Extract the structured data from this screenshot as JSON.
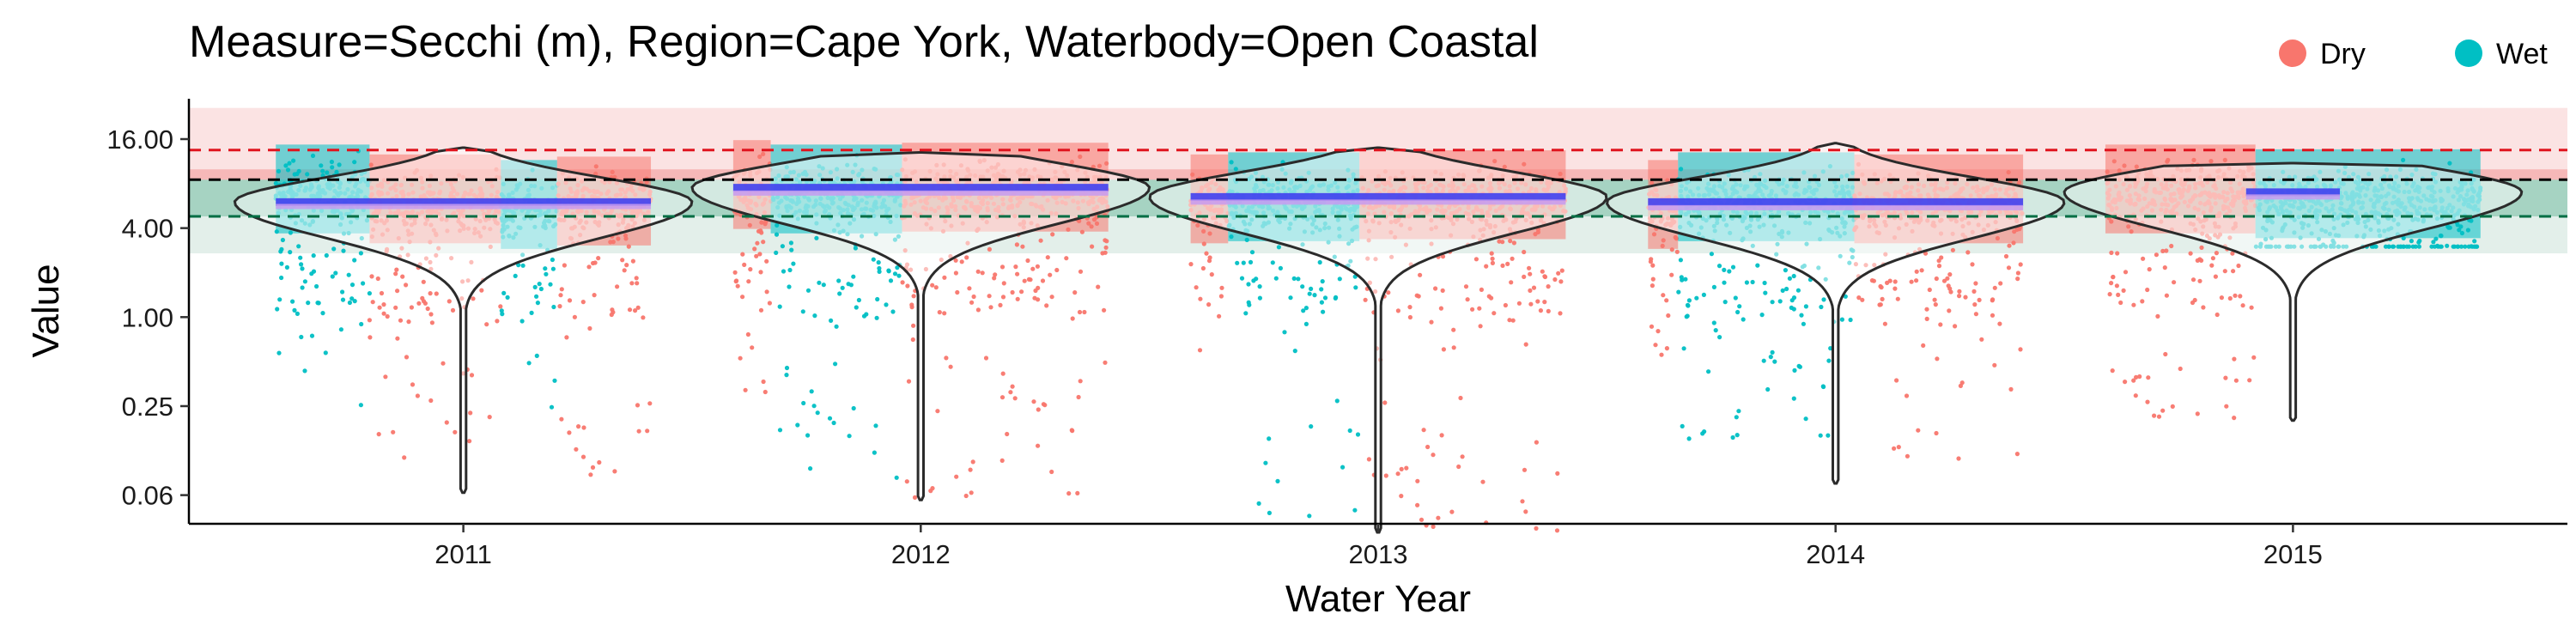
{
  "chart_data": {
    "type": "scatter",
    "title": "Measure=Secchi (m), Region=Cape York, Waterbody=Open Coastal",
    "xlabel": "Water Year",
    "ylabel": "Value",
    "y_scale": "log2",
    "ylim": [
      0.04,
      30
    ],
    "y_ticks": [
      {
        "value": 16,
        "label": "16.00"
      },
      {
        "value": 4,
        "label": "4.00"
      },
      {
        "value": 1,
        "label": "1.00"
      },
      {
        "value": 0.25,
        "label": "0.25"
      },
      {
        "value": 0.0625,
        "label": "0.06"
      }
    ],
    "x_categories": [
      "2011",
      "2012",
      "2013",
      "2014",
      "2015"
    ],
    "legend": {
      "position": "top-right",
      "entries": [
        {
          "name": "Dry",
          "color": "#F8766D"
        },
        {
          "name": "Wet",
          "color": "#00BFC4"
        }
      ]
    },
    "guideline_bands": [
      {
        "from": 10,
        "to": 26,
        "color": "#FBE3E3"
      },
      {
        "from": 4.8,
        "to": 10,
        "color": "#F6B8B8"
      },
      {
        "from": 2.7,
        "to": 4.8,
        "color": "#E3EFEA"
      },
      {
        "from": 4.8,
        "to": 8.5,
        "color": "#A6D3C2"
      }
    ],
    "reference_lines": [
      {
        "value": 13.5,
        "color": "#E0141E",
        "style": "dashed"
      },
      {
        "value": 8.5,
        "color": "#000000",
        "style": "dashed"
      },
      {
        "value": 4.8,
        "color": "#006E44",
        "style": "dashed"
      }
    ],
    "series": [
      {
        "name": "Dry",
        "color": "#F8766D"
      },
      {
        "name": "Wet",
        "color": "#00BFC4"
      }
    ],
    "years": [
      {
        "year": "2011",
        "violin_min": 0.065,
        "violin_max": 14,
        "median": 6.0,
        "mean": 5.6,
        "periods": [
          {
            "season": "Wet",
            "from": 0.0,
            "to": 0.25,
            "median": 7.0,
            "min": 0.2
          },
          {
            "season": "Dry",
            "from": 0.25,
            "to": 0.6,
            "median": 6.0,
            "min": 0.1
          },
          {
            "season": "Wet",
            "from": 0.6,
            "to": 0.75,
            "median": 5.5,
            "min": 0.2
          },
          {
            "season": "Dry",
            "from": 0.75,
            "to": 1.0,
            "median": 5.8,
            "min": 0.08
          }
        ]
      },
      {
        "year": "2012",
        "violin_min": 0.058,
        "violin_max": 13,
        "median": 7.5,
        "mean": 6.9,
        "periods": [
          {
            "season": "Dry",
            "from": 0.0,
            "to": 0.1,
            "median": 7.5,
            "min": 0.3
          },
          {
            "season": "Wet",
            "from": 0.1,
            "to": 0.45,
            "median": 7.0,
            "min": 0.08
          },
          {
            "season": "Dry",
            "from": 0.45,
            "to": 1.0,
            "median": 7.2,
            "min": 0.06
          }
        ]
      },
      {
        "year": "2013",
        "violin_min": 0.035,
        "violin_max": 14,
        "median": 6.5,
        "mean": 6.0,
        "periods": [
          {
            "season": "Dry",
            "from": 0.0,
            "to": 0.1,
            "median": 6.0,
            "min": 0.2
          },
          {
            "season": "Wet",
            "from": 0.1,
            "to": 0.45,
            "median": 6.2,
            "min": 0.04
          },
          {
            "season": "Dry",
            "from": 0.45,
            "to": 1.0,
            "median": 6.4,
            "min": 0.035
          }
        ]
      },
      {
        "year": "2014",
        "violin_min": 0.075,
        "violin_max": 15,
        "median": 6.0,
        "mean": 5.5,
        "periods": [
          {
            "season": "Dry",
            "from": 0.0,
            "to": 0.08,
            "median": 5.5,
            "min": 0.3
          },
          {
            "season": "Wet",
            "from": 0.08,
            "to": 0.55,
            "median": 6.2,
            "min": 0.15
          },
          {
            "season": "Dry",
            "from": 0.55,
            "to": 1.0,
            "median": 6.0,
            "min": 0.1
          }
        ]
      },
      {
        "year": "2015",
        "violin_min": 0.2,
        "violin_max": 11,
        "median": 7.0,
        "mean": 6.5,
        "periods": [
          {
            "season": "Dry",
            "from": 0.0,
            "to": 0.4,
            "median": 7.0,
            "min": 0.2
          },
          {
            "season": "Wet",
            "from": 0.4,
            "to": 1.0,
            "median": 6.5,
            "min": 3.0
          }
        ]
      }
    ],
    "grid": false
  }
}
